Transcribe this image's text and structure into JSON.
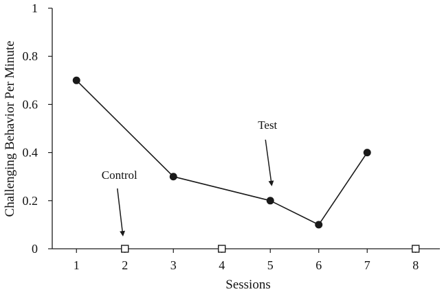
{
  "chart_data": {
    "type": "line",
    "title": "",
    "xlabel": "Sessions",
    "ylabel": "Challenging Behavior Per Minute",
    "xlim": [
      0.5,
      8.5
    ],
    "ylim": [
      0,
      1
    ],
    "x_ticks": [
      1,
      2,
      3,
      4,
      5,
      6,
      7,
      8
    ],
    "y_ticks": [
      0,
      0.2,
      0.4,
      0.6,
      0.8,
      1
    ],
    "y_tick_labels": [
      "0",
      "0.2",
      "0.4",
      "0.6",
      "0.8",
      "1"
    ],
    "grid": false,
    "series": [
      {
        "condition": "Test",
        "x": [
          1,
          3,
          5,
          6,
          7
        ],
        "y": [
          0.7,
          0.3,
          0.2,
          0.1,
          0.4
        ],
        "marker": "filled-circle",
        "color": "#1a1a1a"
      },
      {
        "condition": "Control",
        "x": [
          2,
          4,
          8
        ],
        "y": [
          0,
          0,
          0
        ],
        "marker": "open-square",
        "color": "#1a1a1a"
      }
    ],
    "annotations": [
      {
        "text": "Control",
        "points_to": {
          "x": 2,
          "y": 0
        }
      },
      {
        "text": "Test",
        "points_to": {
          "x": 5,
          "y": 0.2
        }
      }
    ]
  },
  "colors": {
    "axis": "#1a1a1a",
    "line": "#1a1a1a",
    "marker": "#1a1a1a",
    "background": "#ffffff"
  }
}
